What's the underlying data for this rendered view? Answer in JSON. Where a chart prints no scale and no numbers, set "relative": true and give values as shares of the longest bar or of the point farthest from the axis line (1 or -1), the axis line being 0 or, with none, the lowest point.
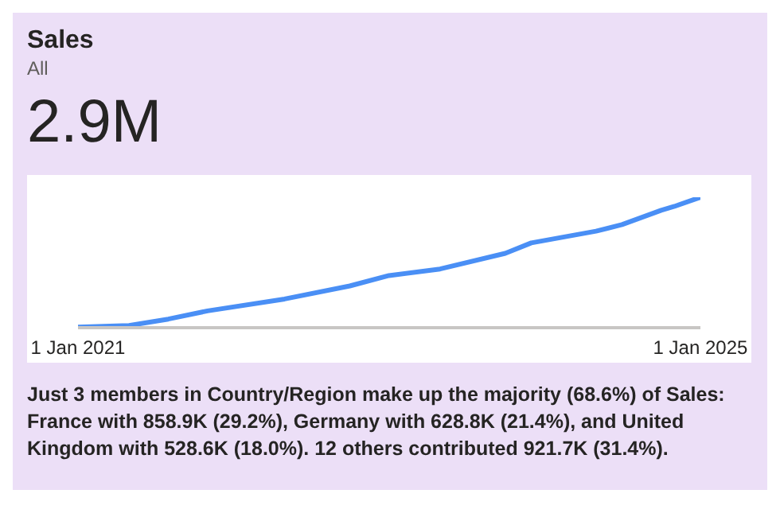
{
  "chart_data": {
    "type": "line",
    "title": "Sales",
    "subtitle": "All",
    "relative": true,
    "annotations": [
      "2.9M",
      "Just 3 members in Country/Region make up the majority (68.6%) of Sales: France with 858.9K (29.2%), Germany with 628.8K (21.4%), and United Kingdom with 528.6K (18.0%). 12 others contributed 921.7K (31.4%)."
    ],
    "x": [
      "2021-01",
      "2021-05",
      "2021-08",
      "2021-11",
      "2022-05",
      "2022-10",
      "2023-01",
      "2023-05",
      "2023-10",
      "2023-12",
      "2024-05",
      "2024-07",
      "2024-10",
      "2024-11",
      "2025-01"
    ],
    "xlim": [
      "2021-01-01",
      "2025-01-01"
    ],
    "xticks": [
      {
        "value": "2021-01-01",
        "label": "1 Jan 2021"
      },
      {
        "value": "2025-01-01",
        "label": "1 Jan 2025"
      }
    ],
    "series": [
      {
        "color": "#4a8ff5",
        "values": [
          0.004,
          0.017,
          0.066,
          0.129,
          0.22,
          0.32,
          0.4,
          0.45,
          0.57,
          0.65,
          0.74,
          0.79,
          0.9,
          0.93,
          1
        ]
      }
    ],
    "marker": "none",
    "line_style": "solid"
  }
}
